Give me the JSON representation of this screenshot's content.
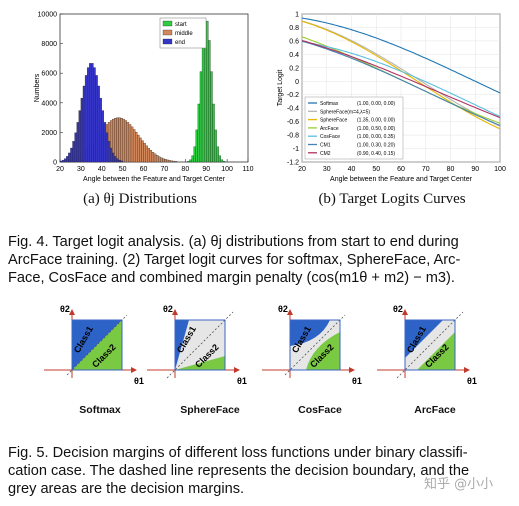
{
  "figure4": {
    "subcaption_a": "(a) θj Distributions",
    "subcaption_b": "(b) Target Logits Curves",
    "caption_lines": [
      "Fig. 4. Target logit analysis. (a) θj distributions from start to end during",
      "ArcFace training. (2) Target logit curves for softmax, SphereFace, Arc-",
      "Face, CosFace and combined margin penalty (cos(m1θ + m2) − m3)."
    ]
  },
  "figure5": {
    "panel_labels": [
      "Softmax",
      "SphereFace",
      "CosFace",
      "ArcFace"
    ],
    "axis_labels": {
      "y": "θ2",
      "x": "θ1"
    },
    "class_labels": [
      "Class1",
      "Class2"
    ],
    "caption_lines": [
      "Fig. 5. Decision margins of different loss functions under binary classifi-",
      "cation case. The dashed line represents the decision boundary, and the",
      "grey areas are the decision margins."
    ]
  },
  "watermark": "知乎 @小小",
  "chart_data": [
    {
      "type": "bar",
      "title": "",
      "xlabel": "Angle between the Feature and Target Center",
      "ylabel": "Numbers",
      "xlim": [
        20,
        110
      ],
      "ylim": [
        0,
        10000
      ],
      "xticks": [
        20,
        30,
        40,
        50,
        60,
        70,
        80,
        90,
        100,
        110
      ],
      "yticks": [
        0,
        2000,
        4000,
        6000,
        8000,
        10000
      ],
      "legend": "top-right",
      "series": [
        {
          "name": "start",
          "color": "#2ecc40",
          "mean": 90,
          "std": 2.6,
          "peak": 9700
        },
        {
          "name": "middle",
          "color": "#d2875a",
          "mean": 48,
          "std": 9.5,
          "peak": 3000
        },
        {
          "name": "end",
          "color": "#3535c8",
          "mean": 35,
          "std": 4.8,
          "peak": 6700
        }
      ]
    },
    {
      "type": "line",
      "title": "",
      "xlabel": "Angle between the Feature and Target Center",
      "ylabel": "Target Logit",
      "xlim": [
        20,
        100
      ],
      "ylim": [
        -1.2,
        1
      ],
      "xticks": [
        20,
        30,
        40,
        50,
        60,
        70,
        80,
        90,
        100
      ],
      "yticks": [
        1,
        0.8,
        0.6,
        0.4,
        0.2,
        0,
        -0.2,
        -0.4,
        -0.6,
        -0.8,
        -1,
        -1.2
      ],
      "legend": "bottom-left",
      "series": [
        {
          "name": "Softmax",
          "params": "(1.00, 0.00, 0.00)",
          "color": "#1f77b4",
          "m1": 1.0,
          "m2": 0.0,
          "m3": 0.0
        },
        {
          "name": "SphereFace(m=4,λ=5)",
          "params": "",
          "color": "#b5b5b5",
          "m1": 1.32,
          "m2": 0.0,
          "m3": 0.0
        },
        {
          "name": "SphereFace",
          "params": "(1.35, 0.00, 0.00)",
          "color": "#e6b800",
          "m1": 1.35,
          "m2": 0.0,
          "m3": 0.0
        },
        {
          "name": "ArcFace",
          "params": "(1.00, 0.50, 0.00)",
          "color": "#9acd32",
          "m1": 1.0,
          "m2": 0.5,
          "m3": 0.0
        },
        {
          "name": "CosFace",
          "params": "(1.00, 0.00, 0.35)",
          "color": "#5bc0de",
          "m1": 1.0,
          "m2": 0.0,
          "m3": 0.35
        },
        {
          "name": "CM1",
          "params": "(1.00, 0.30, 0.20)",
          "color": "#4682b4",
          "m1": 1.0,
          "m2": 0.3,
          "m3": 0.2
        },
        {
          "name": "CM2",
          "params": "(0.90, 0.40, 0.15)",
          "color": "#b03060",
          "m1": 0.9,
          "m2": 0.4,
          "m3": 0.15
        }
      ]
    }
  ]
}
